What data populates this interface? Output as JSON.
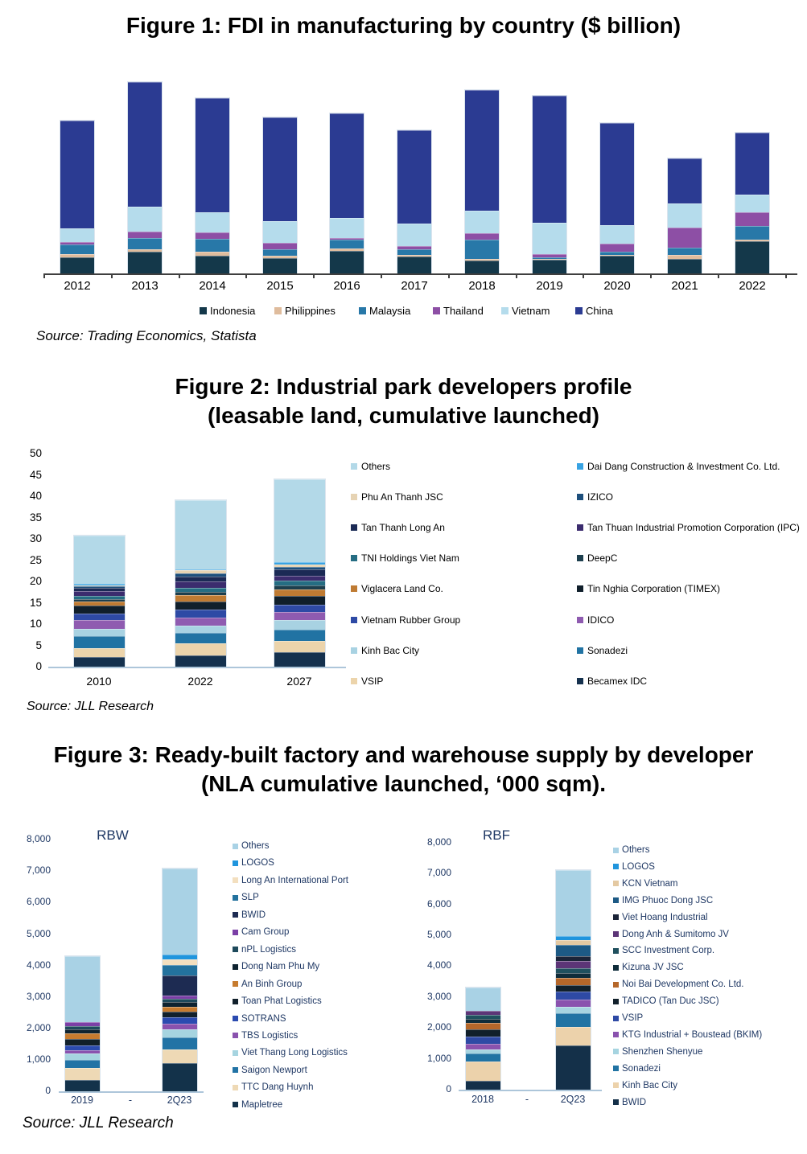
{
  "figure1": {
    "title": "Figure 1: FDI in manufacturing by country ($ billion)",
    "source": "Source: Trading Economics, Statista",
    "chart_data": {
      "type": "bar",
      "stacked": true,
      "title": "Figure 1: FDI in manufacturing by country ($ billion)",
      "categories": [
        "2012",
        "2013",
        "2014",
        "2015",
        "2016",
        "2017",
        "2018",
        "2019",
        "2020",
        "2021",
        "2022"
      ],
      "series": [
        {
          "name": "Indonesia",
          "color": "#14384a",
          "values": [
            20.0,
            27.3,
            21.7,
            19.3,
            28.3,
            21.0,
            16.0,
            16.7,
            21.7,
            18.3,
            40.0
          ]
        },
        {
          "name": "Philippines",
          "color": "#dfbc9d",
          "values": [
            4.0,
            2.3,
            5.0,
            2.3,
            2.3,
            1.7,
            2.3,
            1.0,
            1.7,
            5.0,
            1.7
          ]
        },
        {
          "name": "Malaysia",
          "color": "#2878a8",
          "values": [
            11.7,
            14.7,
            16.7,
            8.3,
            11.0,
            7.3,
            23.3,
            2.0,
            4.0,
            8.3,
            17.7
          ]
        },
        {
          "name": "Thailand",
          "color": "#8d4fa5",
          "values": [
            3.3,
            8.0,
            8.0,
            8.3,
            2.3,
            4.0,
            8.3,
            4.0,
            9.3,
            25.0,
            16.3
          ]
        },
        {
          "name": "Vietnam",
          "color": "#b5dcec",
          "values": [
            16.7,
            31.0,
            24.3,
            27.3,
            25.0,
            27.7,
            27.7,
            39.3,
            23.3,
            30.0,
            22.7
          ]
        },
        {
          "name": "China",
          "color": "#2b3b92",
          "values": [
            134.3,
            155.0,
            142.7,
            129.0,
            130.0,
            116.7,
            150.7,
            158.3,
            126.7,
            56.7,
            76.7
          ]
        }
      ],
      "legend": [
        "Indonesia",
        "Philippines",
        "Malaysia",
        "Thailand",
        "Vietnam",
        "China"
      ],
      "legend_position": "bottom",
      "y_axis": {
        "visible": false,
        "note": "no y-axis shown; values estimated from bar heights"
      }
    }
  },
  "figure2": {
    "title_line1": "Figure 2: Industrial park developers profile",
    "title_line2": "(leasable land, cumulative launched)",
    "source": "Source: JLL Research",
    "chart_data": {
      "type": "bar",
      "stacked": true,
      "title": "Figure 2: Industrial park developers profile (leasable land, cumulative launched)",
      "categories": [
        "2010",
        "2022",
        "2027"
      ],
      "y_axis": {
        "min": 0,
        "max": 50,
        "step": 5,
        "tick_labels": [
          "0",
          "5",
          "10",
          "15",
          "20",
          "25",
          "30",
          "35",
          "40",
          "45",
          "50"
        ]
      },
      "series": [
        {
          "name": "Becamex IDC",
          "color": "#15314e",
          "values": [
            2.2,
            2.7,
            3.3
          ]
        },
        {
          "name": "VSIP",
          "color": "#ecd4ab",
          "values": [
            2.1,
            2.8,
            2.8
          ]
        },
        {
          "name": "Sonadezi",
          "color": "#2173a3",
          "values": [
            2.8,
            2.4,
            2.5
          ]
        },
        {
          "name": "Kinh Bac City",
          "color": "#a8d2e2",
          "values": [
            1.8,
            1.7,
            2.4
          ]
        },
        {
          "name": "IDICO",
          "color": "#8f5bb0",
          "values": [
            2.0,
            1.8,
            1.9
          ]
        },
        {
          "name": "Vietnam Rubber Group",
          "color": "#2e4aa5",
          "values": [
            1.6,
            2.0,
            1.7
          ]
        },
        {
          "name": "Tin Nghia Corporation (TIMEX)",
          "color": "#101f2b",
          "values": [
            1.9,
            1.9,
            1.9
          ]
        },
        {
          "name": "Viglacera Land Co.",
          "color": "#bf7b33",
          "values": [
            0.8,
            1.4,
            1.6
          ]
        },
        {
          "name": "DeepC",
          "color": "#1d3f4e",
          "values": [
            0.6,
            0.9,
            0.9
          ]
        },
        {
          "name": "TNI Holdings Viet Nam",
          "color": "#256d83",
          "values": [
            0.8,
            0.9,
            1.1
          ]
        },
        {
          "name": "Tan Thuan Industrial Promotion Corporation (IPC)",
          "color": "#3b2c6e",
          "values": [
            1.1,
            1.4,
            1.3
          ]
        },
        {
          "name": "Tan Thanh Long An",
          "color": "#1b2a55",
          "values": [
            0.8,
            1.3,
            1.4
          ]
        },
        {
          "name": "IZICO",
          "color": "#1d4f7c",
          "values": [
            0.3,
            0.6,
            0.6
          ]
        },
        {
          "name": "Phu An Thanh JSC",
          "color": "#e6d3b3",
          "values": [
            0.3,
            0.8,
            0.6
          ]
        },
        {
          "name": "Dai Dang Construction & Investment Co. Ltd.",
          "color": "#38a3e3",
          "values": [
            0.3,
            0.3,
            0.5
          ]
        },
        {
          "name": "Others",
          "color": "#b3d9e8",
          "values": [
            11.4,
            16.1,
            19.5
          ]
        }
      ],
      "legend_columns": [
        [
          "Others",
          "Phu An Thanh JSC",
          "Tan Thanh Long An",
          "TNI Holdings Viet Nam",
          "Viglacera Land Co.",
          "Vietnam Rubber Group",
          "Kinh Bac City",
          "VSIP"
        ],
        [
          "Dai Dang Construction & Investment Co. Ltd.",
          "IZICO",
          "Tan Thuan Industrial Promotion Corporation (IPC)",
          "DeepC",
          "Tin Nghia Corporation (TIMEX)",
          "IDICO",
          "Sonadezi",
          "Becamex IDC"
        ]
      ]
    }
  },
  "figure3": {
    "title_line1": "Figure 3: Ready-built factory and warehouse supply by developer",
    "title_line2": "(NLA cumulative launched, ‘000 sqm).",
    "source": "Source: JLL Research",
    "chart_data": [
      {
        "type": "bar",
        "stacked": true,
        "title": "RBW",
        "categories": [
          "2019",
          "-",
          "2Q23"
        ],
        "y_axis": {
          "min": 0,
          "max": 8000,
          "step": 1000,
          "tick_labels": [
            "0",
            "1,000",
            "2,000",
            "3,000",
            "4,000",
            "5,000",
            "6,000",
            "7,000",
            "8,000"
          ]
        },
        "series": [
          {
            "name": "Mapletree",
            "color": "#13324a",
            "values": [
              350,
              0,
              900
            ]
          },
          {
            "name": "TTC Dang Huynh",
            "color": "#eed9b5",
            "values": [
              380,
              0,
              430
            ]
          },
          {
            "name": "Saigon Newport",
            "color": "#2273a5",
            "values": [
              260,
              0,
              380
            ]
          },
          {
            "name": "Viet Thang Long Logistics",
            "color": "#a6d4e0",
            "values": [
              210,
              0,
              260
            ]
          },
          {
            "name": "TBS Logistics",
            "color": "#8a52ae",
            "values": [
              100,
              0,
              170
            ]
          },
          {
            "name": "SOTRANS",
            "color": "#2b4bb0",
            "values": [
              150,
              0,
              210
            ]
          },
          {
            "name": "Toan Phat Logistics",
            "color": "#11202b",
            "values": [
              210,
              0,
              170
            ]
          },
          {
            "name": "An Binh Group",
            "color": "#c67b2f",
            "values": [
              170,
              0,
              170
            ]
          },
          {
            "name": "Dong Nam Phu My",
            "color": "#0e2330",
            "values": [
              130,
              0,
              150
            ]
          },
          {
            "name": "nPL Logistics",
            "color": "#1e4a5c",
            "values": [
              110,
              0,
              110
            ]
          },
          {
            "name": "Cam Group",
            "color": "#7b3fa6",
            "values": [
              130,
              0,
              90
            ]
          },
          {
            "name": "BWID",
            "color": "#1d2b52",
            "values": [
              0,
              0,
              640
            ]
          },
          {
            "name": "SLP",
            "color": "#23729e",
            "values": [
              0,
              0,
              340
            ]
          },
          {
            "name": "Long An International Port",
            "color": "#f3dfbf",
            "values": [
              0,
              0,
              170
            ]
          },
          {
            "name": "LOGOS",
            "color": "#2095dd",
            "values": [
              0,
              0,
              170
            ]
          },
          {
            "name": "Others",
            "color": "#a9d2e5",
            "values": [
              2100,
              0,
              2730
            ]
          }
        ],
        "legend": [
          "Others",
          "LOGOS",
          "Long An International Port",
          "SLP",
          "BWID",
          "Cam Group",
          "nPL Logistics",
          "Dong Nam Phu My",
          "An Binh Group",
          "Toan Phat Logistics",
          "SOTRANS",
          "TBS Logistics",
          "Viet Thang Long Logistics",
          "Saigon Newport",
          "TTC Dang Huynh",
          "Mapletree"
        ]
      },
      {
        "type": "bar",
        "stacked": true,
        "title": "RBF",
        "categories": [
          "2018",
          "-",
          "2Q23"
        ],
        "y_axis": {
          "min": 0,
          "max": 8000,
          "step": 1000,
          "tick_labels": [
            "0",
            "1,000",
            "2,000",
            "3,000",
            "4,000",
            "5,000",
            "6,000",
            "7,000",
            "8,000"
          ]
        },
        "series": [
          {
            "name": "BWID",
            "color": "#143049",
            "values": [
              280,
              0,
              1430
            ]
          },
          {
            "name": "Kinh Bac City",
            "color": "#ecd2ab",
            "values": [
              620,
              0,
              610
            ]
          },
          {
            "name": "Sonadezi",
            "color": "#2173a3",
            "values": [
              260,
              0,
              430
            ]
          },
          {
            "name": "Shenzhen Shenyue",
            "color": "#a6d4e0",
            "values": [
              150,
              0,
              220
            ]
          },
          {
            "name": "KTG Industrial + Boustead (BKIM)",
            "color": "#8a52ae",
            "values": [
              160,
              0,
              220
            ]
          },
          {
            "name": "VSIP",
            "color": "#2e4aa5",
            "values": [
              260,
              0,
              260
            ]
          },
          {
            "name": "TADICO (Tan Duc JSC)",
            "color": "#11202b",
            "values": [
              220,
              0,
              220
            ]
          },
          {
            "name": "Noi Bai Development Co. Ltd.",
            "color": "#b5672a",
            "values": [
              200,
              0,
              220
            ]
          },
          {
            "name": "Kizuna JV JSC",
            "color": "#0f2c3a",
            "values": [
              150,
              0,
              170
            ]
          },
          {
            "name": "SCC Investment Corp.",
            "color": "#20505e",
            "values": [
              130,
              0,
              160
            ]
          },
          {
            "name": "Dong Anh & Sumitomo JV",
            "color": "#5c3577",
            "values": [
              130,
              0,
              220
            ]
          },
          {
            "name": "Viet Hoang Industrial",
            "color": "#1b2438",
            "values": [
              0,
              0,
              170
            ]
          },
          {
            "name": "IMG Phuoc Dong JSC",
            "color": "#1d5a85",
            "values": [
              0,
              0,
              350
            ]
          },
          {
            "name": "KCN Vietnam",
            "color": "#e4c9a2",
            "values": [
              0,
              0,
              170
            ]
          },
          {
            "name": "LOGOS",
            "color": "#2095dd",
            "values": [
              0,
              0,
              130
            ]
          },
          {
            "name": "Others",
            "color": "#a9d2e5",
            "values": [
              740,
              0,
              2130
            ]
          }
        ],
        "legend": [
          "Others",
          "LOGOS",
          "KCN Vietnam",
          "IMG Phuoc Dong JSC",
          "Viet Hoang Industrial",
          "Dong Anh & Sumitomo JV",
          "SCC Investment Corp.",
          "Kizuna JV JSC",
          "Noi Bai Development Co. Ltd.",
          "TADICO (Tan Duc JSC)",
          "VSIP",
          "KTG Industrial + Boustead (BKIM)",
          "Shenzhen Shenyue",
          "Sonadezi",
          "Kinh Bac City",
          "BWID"
        ]
      }
    ]
  }
}
